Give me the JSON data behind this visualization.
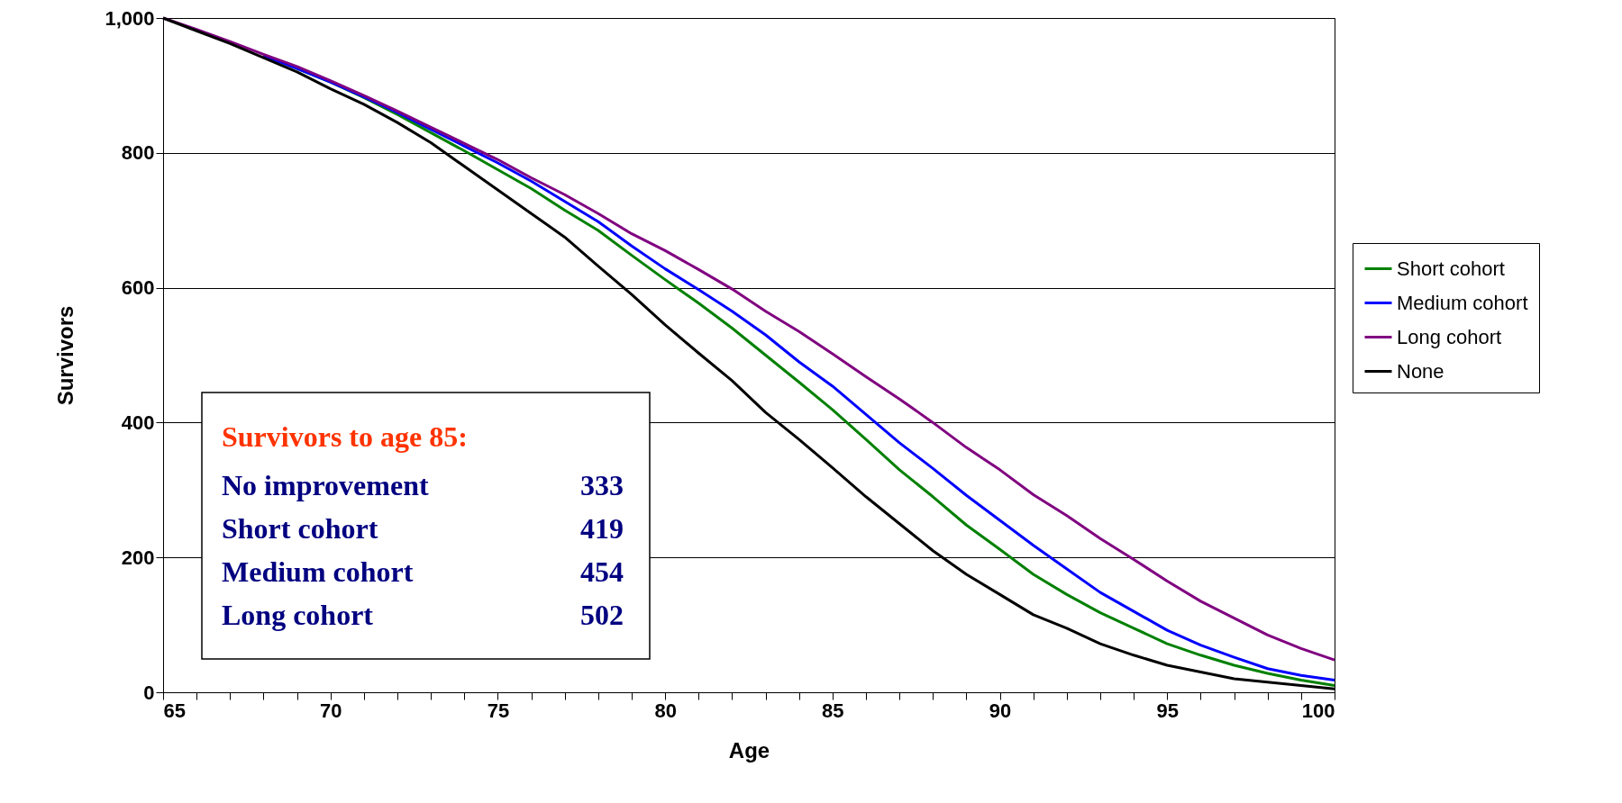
{
  "chart_data": {
    "type": "line",
    "xlabel": "Age",
    "ylabel": "Survivors",
    "x": [
      65,
      66,
      67,
      68,
      69,
      70,
      71,
      72,
      73,
      74,
      75,
      76,
      77,
      78,
      79,
      80,
      81,
      82,
      83,
      84,
      85,
      86,
      87,
      88,
      89,
      90,
      91,
      92,
      93,
      94,
      95,
      96,
      97,
      98,
      99,
      100
    ],
    "series": [
      {
        "name": "Short cohort",
        "color": "#008000",
        "values": [
          null,
          null,
          null,
          null,
          925,
          905,
          882,
          857,
          830,
          803,
          775,
          747,
          715,
          685,
          648,
          612,
          577,
          540,
          500,
          460,
          419,
          375,
          330,
          290,
          248,
          212,
          175,
          145,
          118,
          95,
          72,
          55,
          40,
          28,
          18,
          10
        ]
      },
      {
        "name": "Medium cohort",
        "color": "#0000ff",
        "values": [
          null,
          null,
          null,
          944,
          925,
          905,
          883,
          860,
          835,
          810,
          785,
          758,
          728,
          698,
          662,
          628,
          597,
          565,
          530,
          490,
          454,
          412,
          370,
          332,
          292,
          255,
          218,
          183,
          148,
          120,
          92,
          70,
          52,
          35,
          25,
          18
        ]
      },
      {
        "name": "Long cohort",
        "color": "#800080",
        "values": [
          1000,
          983,
          965,
          946,
          928,
          907,
          885,
          862,
          838,
          814,
          790,
          763,
          738,
          710,
          680,
          655,
          627,
          598,
          565,
          535,
          502,
          468,
          435,
          400,
          363,
          330,
          293,
          262,
          228,
          197,
          165,
          135,
          110,
          85,
          65,
          48
        ]
      },
      {
        "name": "None",
        "color": "#000000",
        "values": [
          1000,
          981,
          962,
          941,
          920,
          895,
          872,
          845,
          815,
          780,
          745,
          710,
          675,
          632,
          590,
          545,
          503,
          462,
          415,
          375,
          333,
          290,
          250,
          210,
          175,
          145,
          115,
          95,
          72,
          55,
          40,
          30,
          20,
          15,
          10,
          5
        ]
      }
    ],
    "xlim": [
      65,
      100
    ],
    "xticks": [
      65,
      {
        "value": 66,
        "label": null
      },
      {
        "value": 67,
        "label": null
      },
      {
        "value": 68,
        "label": null
      },
      {
        "value": 69,
        "label": null
      },
      70,
      {
        "value": 71,
        "label": null
      },
      {
        "value": 72,
        "label": null
      },
      {
        "value": 73,
        "label": null
      },
      {
        "value": 74,
        "label": null
      },
      75,
      {
        "value": 76,
        "label": null
      },
      {
        "value": 77,
        "label": null
      },
      {
        "value": 78,
        "label": null
      },
      {
        "value": 79,
        "label": null
      },
      80,
      {
        "value": 81,
        "label": null
      },
      {
        "value": 82,
        "label": null
      },
      {
        "value": 83,
        "label": null
      },
      {
        "value": 84,
        "label": null
      },
      85,
      {
        "value": 86,
        "label": null
      },
      {
        "value": 87,
        "label": null
      },
      {
        "value": 88,
        "label": null
      },
      {
        "value": 89,
        "label": null
      },
      90,
      {
        "value": 91,
        "label": null
      },
      {
        "value": 92,
        "label": null
      },
      {
        "value": 93,
        "label": null
      },
      {
        "value": 94,
        "label": null
      },
      95,
      {
        "value": 96,
        "label": null
      },
      {
        "value": 97,
        "label": null
      },
      {
        "value": 98,
        "label": null
      },
      {
        "value": 99,
        "label": null
      },
      100
    ],
    "ylim": [
      0,
      1000
    ],
    "yticks": [
      0,
      200,
      400,
      600,
      800,
      {
        "value": 1000,
        "label": "1,000"
      }
    ],
    "grid": "y",
    "legend": "right",
    "marker": "none",
    "line_style": "solid",
    "annotations": [
      "Survivors to age 85:",
      "No improvement",
      "333",
      "Short cohort",
      "419",
      "Medium cohort",
      "454",
      "Long cohort",
      "502"
    ]
  }
}
